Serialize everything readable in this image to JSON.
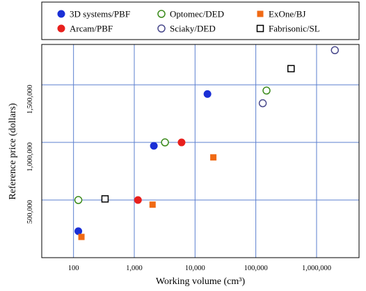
{
  "chart_data": {
    "type": "scatter",
    "title": "",
    "xlabel": "Working volume (cm³)",
    "ylabel": "Reference price (dollars)",
    "x_scale": "log",
    "xlim": [
      30,
      5000000
    ],
    "ylim": [
      0,
      1850000
    ],
    "x_ticks": [
      100,
      1000,
      10000,
      100000,
      1000000
    ],
    "x_tick_labels": [
      "100",
      "1,000",
      "10,000",
      "100,000",
      "1,000,000"
    ],
    "y_ticks": [
      500000,
      1000000,
      1500000
    ],
    "y_tick_labels": [
      "500,000",
      "1,000,000",
      "1,500,000"
    ],
    "grid": true,
    "legend_position": "top",
    "series": [
      {
        "name": "3D systems/PBF",
        "marker": "circle-filled",
        "color": "#1a2fd6",
        "points": [
          [
            120,
            230000
          ],
          [
            2100,
            970000
          ],
          [
            16000,
            1420000
          ]
        ]
      },
      {
        "name": "Arcam/PBF",
        "marker": "circle-filled",
        "color": "#e8201d",
        "points": [
          [
            1150,
            500000
          ],
          [
            6000,
            1000000
          ]
        ]
      },
      {
        "name": "Optomec/DED",
        "marker": "circle-open",
        "color": "#3a8a1a",
        "points": [
          [
            120,
            500000
          ],
          [
            3200,
            1000000
          ],
          [
            150000,
            1450000
          ]
        ]
      },
      {
        "name": "Sciaky/DED",
        "marker": "circle-open",
        "color": "#4a4a8c",
        "points": [
          [
            130000,
            1340000
          ],
          [
            2000000,
            1800000
          ]
        ]
      },
      {
        "name": "ExOne/BJ",
        "marker": "square-filled",
        "color": "#f06a14",
        "points": [
          [
            135,
            180000
          ],
          [
            2000,
            460000
          ],
          [
            20000,
            870000
          ]
        ]
      },
      {
        "name": "Fabrisonic/SL",
        "marker": "square-open",
        "color": "#000000",
        "points": [
          [
            330,
            510000
          ],
          [
            380000,
            1640000
          ]
        ]
      }
    ]
  }
}
